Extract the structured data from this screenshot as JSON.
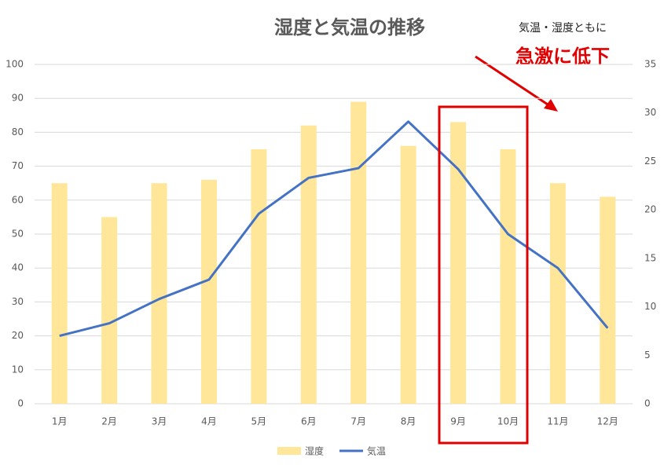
{
  "chart_data": {
    "type": "bar",
    "title": "湿度と気温の推移",
    "categories": [
      "1月",
      "2月",
      "3月",
      "4月",
      "5月",
      "6月",
      "7月",
      "8月",
      "9月",
      "10月",
      "11月",
      "12月"
    ],
    "series": [
      {
        "name": "湿度",
        "type": "bar",
        "color": "#ffe699",
        "values": [
          65,
          55,
          65,
          66,
          75,
          82,
          89,
          76,
          83,
          75,
          65,
          61
        ]
      },
      {
        "name": "気温",
        "type": "line",
        "axis": "y2",
        "color": "#4472c4",
        "values": [
          7.0,
          8.3,
          10.8,
          12.8,
          19.6,
          23.3,
          24.3,
          29.1,
          24.2,
          17.5,
          14.0,
          7.8
        ]
      }
    ],
    "ylim": [
      0,
      100
    ],
    "yticks": [
      0,
      10,
      20,
      30,
      40,
      50,
      60,
      70,
      80,
      90,
      100
    ],
    "y2lim": [
      0,
      35
    ],
    "y2ticks": [
      0,
      5,
      10,
      15,
      20,
      25,
      30,
      35
    ],
    "grid": true,
    "legend": "bottom",
    "annotations": [
      "気温・湿度ともに",
      "急激に低下"
    ]
  }
}
